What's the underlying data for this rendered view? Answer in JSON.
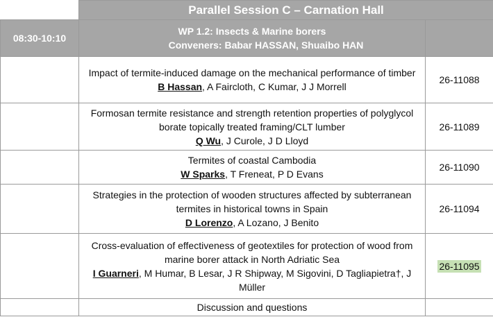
{
  "header": {
    "title": "Parallel Session C – Carnation Hall"
  },
  "session": {
    "time": "08:30-10:10",
    "title": "WP 1.2: Insects & Marine borers",
    "conveners": "Conveners: Babar HASSAN, Shuaibo HAN"
  },
  "papers": [
    {
      "title": "Impact of termite-induced damage on the mechanical performance of timber",
      "presenter": "B Hassan",
      "coauthors": ", A Faircloth, C Kumar, J J Morrell",
      "code": "26-11088",
      "highlight": false
    },
    {
      "title": "Formosan termite resistance and strength retention properties of polyglycol borate topically treated framing/CLT lumber",
      "presenter": "Q Wu",
      "coauthors": ", J Curole, J D Lloyd",
      "code": "26-11089",
      "highlight": false
    },
    {
      "title": "Termites of coastal Cambodia",
      "presenter": "W Sparks",
      "coauthors": ", T Freneat, P D Evans",
      "code": "26-11090",
      "highlight": false
    },
    {
      "title": "Strategies in the protection of wooden structures affected by subterranean termites in historical towns in Spain",
      "presenter": "D Lorenzo",
      "coauthors": ", A Lozano, J Benito",
      "code": "26-11094",
      "highlight": false
    },
    {
      "title": "Cross-evaluation of effectiveness of geotextiles for protection of wood from marine borer attack in North Adriatic Sea",
      "presenter": "I Guarneri",
      "coauthors": ", M Humar, B Lesar, J R Shipway, M Sigovini, D Tagliapietra†, J Müller",
      "code": "26-11095",
      "highlight": true
    }
  ],
  "closing": "Discussion and questions"
}
